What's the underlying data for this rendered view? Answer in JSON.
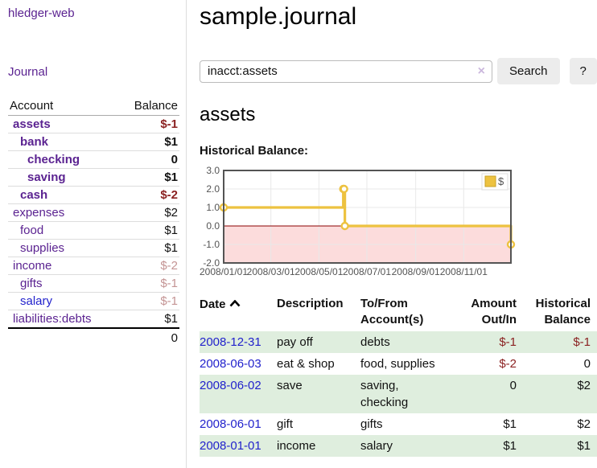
{
  "sidebar": {
    "app_title": "hledger-web",
    "journal_link": "Journal",
    "accounts_table": {
      "col_account": "Account",
      "col_balance": "Balance",
      "rows": [
        {
          "name": "assets",
          "depth": 0,
          "bold": true,
          "balance": "$-1",
          "balance_style": "neg-strong"
        },
        {
          "name": "bank",
          "depth": 1,
          "bold": true,
          "balance": "$1",
          "balance_style": "pos"
        },
        {
          "name": "checking",
          "depth": 2,
          "bold": true,
          "balance": "0",
          "balance_style": "pos"
        },
        {
          "name": "saving",
          "depth": 2,
          "bold": true,
          "balance": "$1",
          "balance_style": "pos"
        },
        {
          "name": "cash",
          "depth": 1,
          "bold": true,
          "balance": "$-2",
          "balance_style": "neg-strong"
        },
        {
          "name": "expenses",
          "depth": 0,
          "bold": false,
          "balance": "$2",
          "balance_style": "pos"
        },
        {
          "name": "food",
          "depth": 1,
          "bold": false,
          "balance": "$1",
          "balance_style": "pos"
        },
        {
          "name": "supplies",
          "depth": 1,
          "bold": false,
          "balance": "$1",
          "balance_style": "pos"
        },
        {
          "name": "income",
          "depth": 0,
          "bold": false,
          "balance": "$-2",
          "balance_style": "neg-faded"
        },
        {
          "name": "gifts",
          "depth": 1,
          "bold": false,
          "balance": "$-1",
          "balance_style": "neg-faded"
        },
        {
          "name": "salary",
          "depth": 1,
          "bold": false,
          "link_color": "blue",
          "balance": "$-1",
          "balance_style": "neg-faded"
        },
        {
          "name": "liabilities:debts",
          "depth": 0,
          "bold": false,
          "balance": "$1",
          "balance_style": "pos"
        }
      ],
      "total": "0"
    }
  },
  "main": {
    "title": "sample.journal",
    "search": {
      "value": "inacct:assets",
      "clear_icon": "×",
      "button_label": "Search",
      "help_label": "?"
    },
    "account_heading": "assets",
    "chart_heading": "Historical Balance:"
  },
  "chart_data": {
    "type": "line",
    "style": "step",
    "title": "Historical Balance",
    "series": [
      {
        "name": "$",
        "color": "#edc240",
        "dates": [
          "2008-01-01",
          "2008-06-01",
          "2008-06-02",
          "2008-06-03",
          "2008-12-31"
        ],
        "x_days": [
          0,
          152,
          153,
          154,
          365
        ],
        "values": [
          1,
          2,
          2,
          0,
          -1
        ]
      }
    ],
    "x_ticks": [
      {
        "day": 0,
        "label": "2008/01/01"
      },
      {
        "day": 60,
        "label": "2008/03/01"
      },
      {
        "day": 121,
        "label": "2008/05/01"
      },
      {
        "day": 182,
        "label": "2008/07/01"
      },
      {
        "day": 244,
        "label": "2008/09/01"
      },
      {
        "day": 305,
        "label": "2008/11/01"
      }
    ],
    "y_ticks": [
      3.0,
      2.0,
      1.0,
      0.0,
      -1.0,
      -2.0
    ],
    "ylim": [
      -2,
      3
    ],
    "xlim_days": [
      0,
      365
    ],
    "grid": true,
    "legend_position": "top-right",
    "colors": {
      "line": "#edc240",
      "marker_fill": "#ffffff",
      "negative_region": "#fcdcdc",
      "zero_line": "#8b0000",
      "border": "#545454",
      "gridline": "#e8e8e8",
      "tick_text": "#545454"
    }
  },
  "register_table": {
    "headers": {
      "date": "Date",
      "description": "Description",
      "accounts": "To/From Account(s)",
      "amount": "Amount Out/In",
      "balance": "Historical Balance"
    },
    "rows": [
      {
        "date": "2008-12-31",
        "description": "pay off",
        "accounts": "debts",
        "amount": "$-1",
        "amount_neg": true,
        "balance": "$-1",
        "balance_neg": true
      },
      {
        "date": "2008-06-03",
        "description": "eat & shop",
        "accounts": "food, supplies",
        "amount": "$-2",
        "amount_neg": true,
        "balance": "0",
        "balance_neg": false
      },
      {
        "date": "2008-06-02",
        "description": "save",
        "accounts": "saving, checking",
        "amount": "0",
        "amount_neg": false,
        "balance": "$2",
        "balance_neg": false
      },
      {
        "date": "2008-06-01",
        "description": "gift",
        "accounts": "gifts",
        "amount": "$1",
        "amount_neg": false,
        "balance": "$2",
        "balance_neg": false
      },
      {
        "date": "2008-01-01",
        "description": "income",
        "accounts": "salary",
        "amount": "$1",
        "amount_neg": false,
        "balance": "$1",
        "balance_neg": false
      }
    ]
  }
}
